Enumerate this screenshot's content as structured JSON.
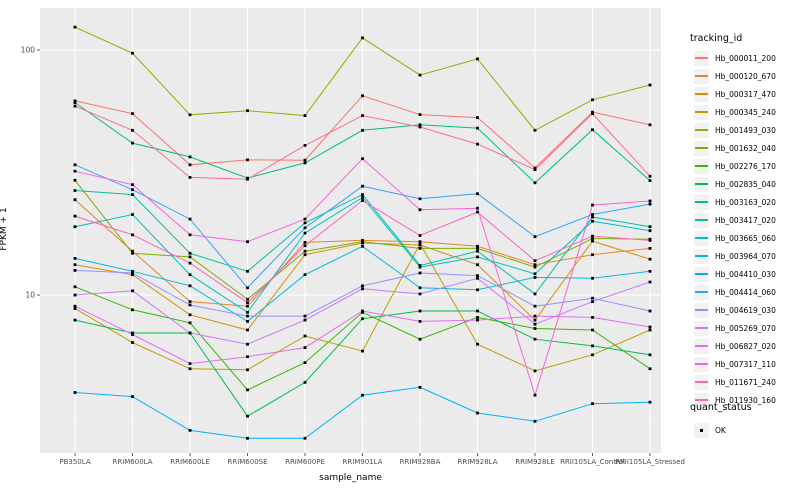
{
  "chart_data": {
    "type": "line",
    "title": "",
    "xlabel": "sample_name",
    "ylabel": "FPKM + 1",
    "y_scale": "log10",
    "ylim": [
      2.2,
      150
    ],
    "y_major_ticks": [
      100,
      10
    ],
    "y_minor_ticks": [
      31.62,
      3.162
    ],
    "grid": "on",
    "point_marker": "black-square",
    "categories": [
      "PB350LA",
      "RRIM600LA",
      "RRIM600LE",
      "RRIM600SE",
      "RRIM600PE",
      "RRIM901LA",
      "RRIM928BA",
      "RRIM928LA",
      "RRIM928LE",
      "RRII105LA_Control",
      "RRII105LA_Stressed"
    ],
    "legend": {
      "title": "tracking_id",
      "position": "right"
    },
    "legend2": {
      "title": "quant_status",
      "items": [
        {
          "label": "OK",
          "marker": "black-square"
        }
      ]
    },
    "series": [
      {
        "name": "Hb_000011_200",
        "color": "#F8766D",
        "values": [
          62,
          55,
          34,
          35.6,
          35.5,
          65,
          54.5,
          53,
          33,
          55.8,
          49.5
        ]
      },
      {
        "name": "Hb_000120_670",
        "color": "#EA8331",
        "values": [
          24.5,
          15.1,
          9.4,
          9.0,
          16.4,
          16.7,
          16.5,
          15.8,
          13.3,
          14.6,
          15.5
        ]
      },
      {
        "name": "Hb_000317_470",
        "color": "#D89000",
        "values": [
          13.3,
          12.1,
          8.3,
          7.2,
          14.6,
          16.3,
          16.0,
          13.3,
          7.9,
          16.6,
          14.0
        ]
      },
      {
        "name": "Hb_000345_240",
        "color": "#C09B00",
        "values": [
          8.8,
          6.4,
          5.0,
          4.95,
          6.8,
          5.9,
          16.2,
          6.3,
          4.9,
          5.7,
          7.2
        ]
      },
      {
        "name": "Hb_001493_030",
        "color": "#A3A500",
        "values": [
          124,
          97,
          54.4,
          56.5,
          54,
          112,
          79,
          92,
          47,
          62.6,
          72
        ]
      },
      {
        "name": "Hb_001632_040",
        "color": "#7CAE00",
        "values": [
          29.4,
          14.8,
          14.3,
          9.6,
          15.1,
          16.5,
          15.5,
          15.5,
          13.0,
          17.0,
          16.9
        ]
      },
      {
        "name": "Hb_002276_170",
        "color": "#39B600",
        "values": [
          10.8,
          8.7,
          7.7,
          4.1,
          5.3,
          8.5,
          6.6,
          8.1,
          7.3,
          7.2,
          5.0
        ]
      },
      {
        "name": "Hb_002835_040",
        "color": "#00BB4E",
        "values": [
          7.9,
          7.0,
          7.0,
          3.2,
          4.4,
          8.0,
          8.6,
          8.6,
          6.6,
          6.2,
          5.7
        ]
      },
      {
        "name": "Hb_003163_020",
        "color": "#00BF7D",
        "values": [
          61,
          41.7,
          36.6,
          30,
          34.6,
          47,
          49.5,
          48,
          28.7,
          47.3,
          29.3
        ]
      },
      {
        "name": "Hb_003417_020",
        "color": "#00C1A3",
        "values": [
          26.7,
          25.7,
          14.8,
          12.5,
          19.7,
          25.7,
          13.2,
          15.1,
          10.1,
          20.8,
          19.0
        ]
      },
      {
        "name": "Hb_003665_060",
        "color": "#00BFC4",
        "values": [
          19,
          21.3,
          12.1,
          8.5,
          17.9,
          25.0,
          13.0,
          14.3,
          12.2,
          20.0,
          18.3
        ]
      },
      {
        "name": "Hb_003964_070",
        "color": "#00BAE0",
        "values": [
          14.1,
          12.5,
          10.9,
          7.8,
          12.1,
          15.8,
          10.7,
          10.5,
          11.8,
          11.7,
          12.5
        ]
      },
      {
        "name": "Hb_004410_030",
        "color": "#00B0F6",
        "values": [
          4.0,
          3.85,
          2.8,
          2.6,
          2.6,
          3.9,
          4.2,
          3.3,
          3.05,
          3.6,
          3.65
        ]
      },
      {
        "name": "Hb_004414_060",
        "color": "#35A2FF",
        "values": [
          34,
          26.9,
          20.4,
          10.7,
          18.8,
          27.8,
          24.7,
          25.9,
          17.3,
          21.3,
          23.5
        ]
      },
      {
        "name": "Hb_004619_030",
        "color": "#9590FF",
        "values": [
          12.6,
          12.3,
          9.1,
          8.2,
          8.2,
          10.9,
          12.3,
          12.0,
          9.0,
          9.7,
          8.6
        ]
      },
      {
        "name": "Hb_005269_070",
        "color": "#C77CFF",
        "values": [
          10.0,
          10.4,
          7.0,
          6.3,
          7.9,
          10.6,
          10.1,
          11.7,
          7.6,
          9.4,
          11.3
        ]
      },
      {
        "name": "Hb_006827_020",
        "color": "#E76BF3",
        "values": [
          9.0,
          6.9,
          5.25,
          5.6,
          6.1,
          8.6,
          7.8,
          7.9,
          8.2,
          8.1,
          7.4
        ]
      },
      {
        "name": "Hb_007317_110",
        "color": "#FA62DB",
        "values": [
          32,
          28.2,
          17.6,
          16.5,
          20.4,
          36,
          22.3,
          22.6,
          3.9,
          23.3,
          24.2
        ]
      },
      {
        "name": "Hb_011671_240",
        "color": "#FF62BC",
        "values": [
          21,
          17.6,
          13.5,
          9.3,
          15.9,
          24.3,
          17.5,
          21.8,
          13.8,
          17.4,
          16.7
        ]
      },
      {
        "name": "Hb_011930_160",
        "color": "#FF6A98",
        "values": [
          59,
          47,
          30.2,
          29.7,
          40.8,
          54,
          48.5,
          41.3,
          32.5,
          55,
          30.5
        ]
      }
    ]
  },
  "theme": {
    "panel_bg": "#EBEBEB",
    "grid_major": "#FFFFFF",
    "grid_minor": "rgba(255,255,255,0.55)",
    "tick_color": "#333333",
    "tick_label_color": "#4D4D4D",
    "text_color": "#000000",
    "legend_key_bg": "#F2F2F2",
    "point_color": "#000000"
  }
}
